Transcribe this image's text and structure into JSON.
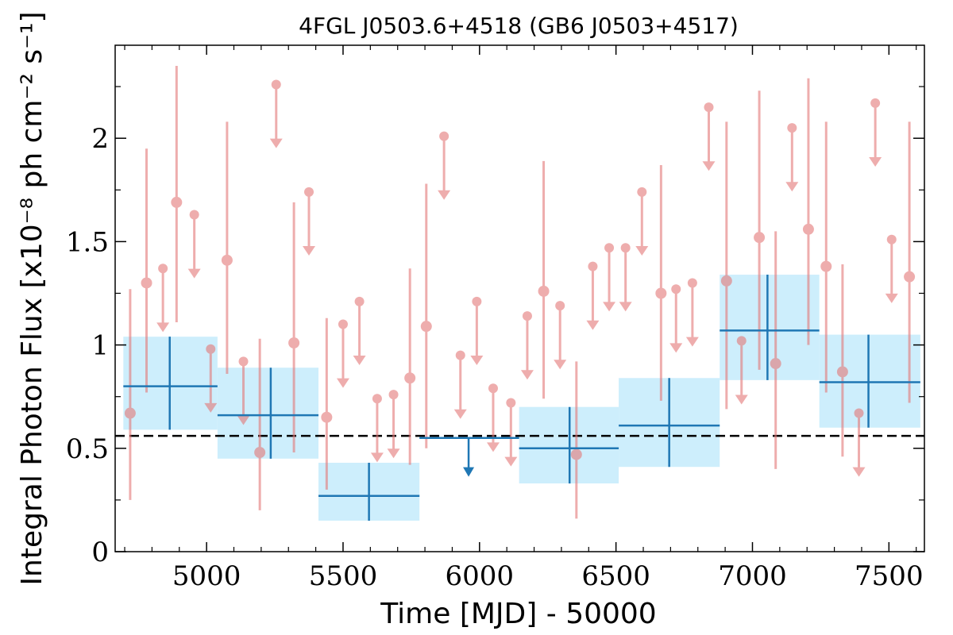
{
  "chart_data": {
    "type": "scatter",
    "title": "4FGL J0503.6+4518 (GB6 J0503+4517)",
    "xlabel": "Time [MJD] - 50000",
    "ylabel": "Integral Photon Flux [x10⁻⁸ ph cm⁻² s⁻¹]",
    "xlim": [
      4665,
      7630
    ],
    "ylim": [
      0,
      2.45
    ],
    "xticks": [
      5000,
      5500,
      6000,
      6500,
      7000,
      7500
    ],
    "xtick_labels": [
      "5000",
      "5500",
      "6000",
      "6500",
      "7000",
      "7500"
    ],
    "yticks": [
      0,
      0.5,
      1,
      1.5,
      2
    ],
    "ytick_labels": [
      "0",
      "0.5",
      "1",
      "1.5",
      "2"
    ],
    "grid": false,
    "reference_line": {
      "y": 0.56,
      "style": "dashed",
      "color": "#000000"
    },
    "colors": {
      "short_bins": "#e47777",
      "long_bins": "#1f77b4",
      "long_bins_band": "#cdeefc"
    },
    "short_bins": {
      "detections": [
        {
          "x": 4720,
          "y": 0.67,
          "ylo": 0.25,
          "yhi": 1.27
        },
        {
          "x": 4780,
          "y": 1.3,
          "ylo": 0.77,
          "yhi": 1.95
        },
        {
          "x": 4890,
          "y": 1.69,
          "ylo": 1.11,
          "yhi": 2.35
        },
        {
          "x": 5075,
          "y": 1.41,
          "ylo": 0.86,
          "yhi": 2.08
        },
        {
          "x": 5195,
          "y": 0.48,
          "ylo": 0.2,
          "yhi": 1.03
        },
        {
          "x": 5320,
          "y": 1.01,
          "ylo": 0.48,
          "yhi": 1.69
        },
        {
          "x": 5440,
          "y": 0.65,
          "ylo": 0.3,
          "yhi": 1.13
        },
        {
          "x": 5745,
          "y": 0.84,
          "ylo": 0.42,
          "yhi": 1.37
        },
        {
          "x": 5805,
          "y": 1.09,
          "ylo": 0.5,
          "yhi": 1.78
        },
        {
          "x": 6235,
          "y": 1.26,
          "ylo": 0.74,
          "yhi": 1.89
        },
        {
          "x": 6355,
          "y": 0.47,
          "ylo": 0.16,
          "yhi": 0.92
        },
        {
          "x": 6665,
          "y": 1.25,
          "ylo": 0.73,
          "yhi": 1.87
        },
        {
          "x": 6905,
          "y": 1.31,
          "ylo": 0.69,
          "yhi": 2.08
        },
        {
          "x": 7025,
          "y": 1.52,
          "ylo": 0.88,
          "yhi": 2.23
        },
        {
          "x": 7085,
          "y": 0.91,
          "ylo": 0.4,
          "yhi": 1.55
        },
        {
          "x": 7205,
          "y": 1.56,
          "ylo": 1.0,
          "yhi": 2.29
        },
        {
          "x": 7270,
          "y": 1.38,
          "ylo": 0.77,
          "yhi": 2.08
        },
        {
          "x": 7330,
          "y": 0.87,
          "ylo": 0.46,
          "yhi": 1.39
        },
        {
          "x": 7575,
          "y": 1.33,
          "ylo": 0.72,
          "yhi": 2.08
        }
      ],
      "upper_limits": [
        {
          "x": 4840,
          "y": 1.37
        },
        {
          "x": 4955,
          "y": 1.63
        },
        {
          "x": 5015,
          "y": 0.98
        },
        {
          "x": 5135,
          "y": 0.92
        },
        {
          "x": 5255,
          "y": 2.26
        },
        {
          "x": 5375,
          "y": 1.74
        },
        {
          "x": 5500,
          "y": 1.1
        },
        {
          "x": 5560,
          "y": 1.21
        },
        {
          "x": 5625,
          "y": 0.74
        },
        {
          "x": 5685,
          "y": 0.76
        },
        {
          "x": 5870,
          "y": 2.01
        },
        {
          "x": 5930,
          "y": 0.95
        },
        {
          "x": 5990,
          "y": 1.21
        },
        {
          "x": 6050,
          "y": 0.79
        },
        {
          "x": 6115,
          "y": 0.72
        },
        {
          "x": 6175,
          "y": 1.14
        },
        {
          "x": 6295,
          "y": 1.19
        },
        {
          "x": 6415,
          "y": 1.38
        },
        {
          "x": 6475,
          "y": 1.47
        },
        {
          "x": 6535,
          "y": 1.47
        },
        {
          "x": 6595,
          "y": 1.74
        },
        {
          "x": 6720,
          "y": 1.27
        },
        {
          "x": 6780,
          "y": 1.3
        },
        {
          "x": 6840,
          "y": 2.15
        },
        {
          "x": 6960,
          "y": 1.02
        },
        {
          "x": 7145,
          "y": 2.05
        },
        {
          "x": 7390,
          "y": 0.67
        },
        {
          "x": 7450,
          "y": 2.17
        },
        {
          "x": 7510,
          "y": 1.51
        }
      ]
    },
    "long_bins": {
      "detections": [
        {
          "x": 4865,
          "xlo": 4695,
          "xhi": 5040,
          "y": 0.8,
          "ylo": 0.59,
          "yhi": 1.04
        },
        {
          "x": 5235,
          "xlo": 5040,
          "xhi": 5410,
          "y": 0.66,
          "ylo": 0.45,
          "yhi": 0.89
        },
        {
          "x": 5595,
          "xlo": 5410,
          "xhi": 5780,
          "y": 0.27,
          "ylo": 0.15,
          "yhi": 0.43
        },
        {
          "x": 6330,
          "xlo": 6145,
          "xhi": 6510,
          "y": 0.5,
          "ylo": 0.33,
          "yhi": 0.7
        },
        {
          "x": 6695,
          "xlo": 6510,
          "xhi": 6880,
          "y": 0.61,
          "ylo": 0.41,
          "yhi": 0.84
        },
        {
          "x": 7055,
          "xlo": 6880,
          "xhi": 7245,
          "y": 1.07,
          "ylo": 0.83,
          "yhi": 1.34
        },
        {
          "x": 7425,
          "xlo": 7245,
          "xhi": 7615,
          "y": 0.82,
          "ylo": 0.6,
          "yhi": 1.05
        }
      ],
      "upper_limits": [
        {
          "x": 5960,
          "xlo": 5780,
          "xhi": 6145,
          "y": 0.55
        }
      ]
    }
  }
}
